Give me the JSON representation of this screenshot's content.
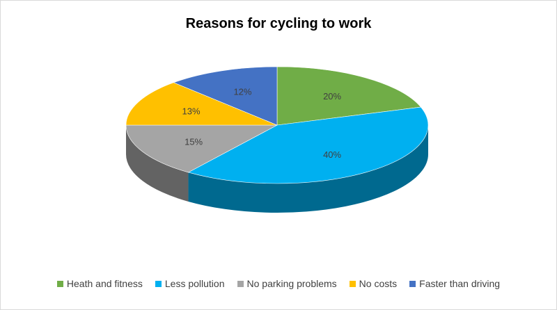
{
  "chart_data": {
    "type": "pie",
    "title": "Reasons for cycling to work",
    "categories": [
      "Heath and fitness",
      "Less pollution",
      "No parking problems",
      "No costs",
      "Faster than driving"
    ],
    "values": [
      20,
      40,
      15,
      13,
      12
    ],
    "value_labels": [
      "20%",
      "40%",
      "15%",
      "13%",
      "12%"
    ],
    "colors": [
      "#70ad47",
      "#00b0f0",
      "#a5a5a5",
      "#ffc000",
      "#4472c4"
    ],
    "side_colors": [
      "#44692a",
      "#00698f",
      "#636363",
      "#996f00",
      "#29447a"
    ],
    "legend_position": "bottom",
    "style": "3d"
  }
}
